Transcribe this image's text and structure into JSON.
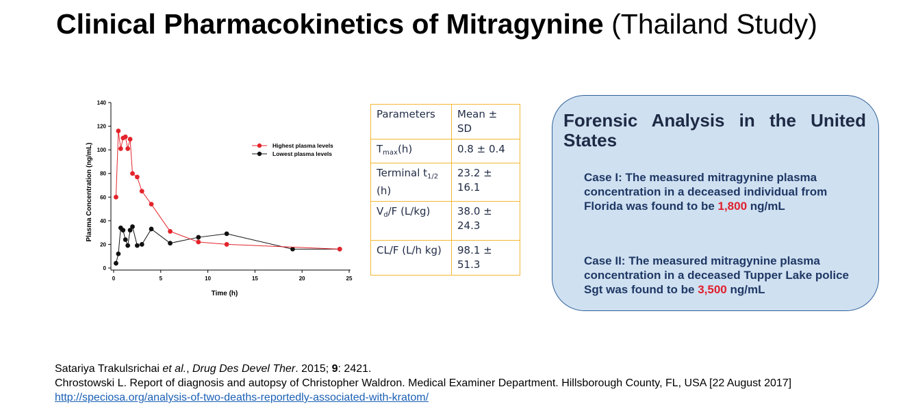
{
  "slide": {
    "title_bold": "Clinical Pharmacokinetics of Mitragynine",
    "title_rest": "(Thailand Study)"
  },
  "chart_data": {
    "type": "line",
    "xlabel": "Time (h)",
    "ylabel": "Plasma Concentration (ng/mL)",
    "xlim": [
      0,
      25
    ],
    "ylim": [
      0,
      140
    ],
    "xticks": [
      0,
      5,
      10,
      15,
      20,
      25
    ],
    "yticks": [
      0,
      20,
      40,
      60,
      80,
      100,
      120,
      140
    ],
    "grid": false,
    "legend_position": "top-right",
    "series": [
      {
        "name": "Highest plasma levels",
        "color": "#e3242b",
        "x": [
          0.25,
          0.5,
          0.75,
          1.0,
          1.25,
          1.5,
          1.75,
          2.0,
          2.5,
          3.0,
          4.0,
          6.0,
          9.0,
          12.0,
          24.0
        ],
        "y": [
          60,
          116,
          101,
          110,
          111,
          101,
          109,
          80,
          77,
          65,
          54,
          31,
          22,
          20,
          16
        ]
      },
      {
        "name": "Lowest plasma levels",
        "color": "#111111",
        "x": [
          0.25,
          0.5,
          0.75,
          1.0,
          1.25,
          1.5,
          1.75,
          2.0,
          2.5,
          3.0,
          4.0,
          6.0,
          9.0,
          12.0,
          19.0,
          24.0
        ],
        "y": [
          4,
          12,
          34,
          32,
          24,
          19,
          32,
          35,
          19,
          20,
          33,
          21,
          26,
          29,
          16,
          16
        ]
      }
    ]
  },
  "params_table": {
    "header": [
      "Parameters",
      "Mean ± SD"
    ],
    "rows": [
      {
        "p_main": "T",
        "p_sub": "max",
        "p_tail": "(h)",
        "value": "0.8 ± 0.4"
      },
      {
        "p_main": "Terminal t",
        "p_sub": "1/2",
        "p_tail": " (h)",
        "value": "23.2 ± 16.1"
      },
      {
        "p_main": "V",
        "p_sub": "d",
        "p_tail": "/F (L/kg)",
        "value": "38.0 ± 24.3"
      },
      {
        "p_main": "CL/F (L/h kg)",
        "p_sub": "",
        "p_tail": "",
        "value": "98.1 ± 51.3"
      }
    ]
  },
  "forensic": {
    "title": "Forensic Analysis in the United States",
    "case1_pre": "Case I: The measured mitragynine plasma concentration in a deceased individual from Florida was found to be ",
    "case1_value": "1,800",
    "case1_unit": " ng/mL",
    "case2_pre": "Case II: The measured mitragynine plasma concentration in a deceased Tupper Lake police Sgt was found to be ",
    "case2_value": "3,500",
    "case2_unit": " ng/mL"
  },
  "references": {
    "ref1_author": "Satariya Trakulsrichai ",
    "ref1_etal": "et al.",
    "ref1_comma": ", ",
    "ref1_journal": "Drug Des Devel Ther",
    "ref1_year": ". 2015; ",
    "ref1_volume": "9",
    "ref1_pages": ": 2421.",
    "ref2_text": "Chrostowski L. Report of diagnosis and autopsy of Christopher Waldron. Medical Examiner Department. Hillsborough County, FL, USA [22 August 2017] ",
    "ref2_link": "http://speciosa.org/analysis-of-two-deaths-reportedly-associated-with-kratom/"
  }
}
